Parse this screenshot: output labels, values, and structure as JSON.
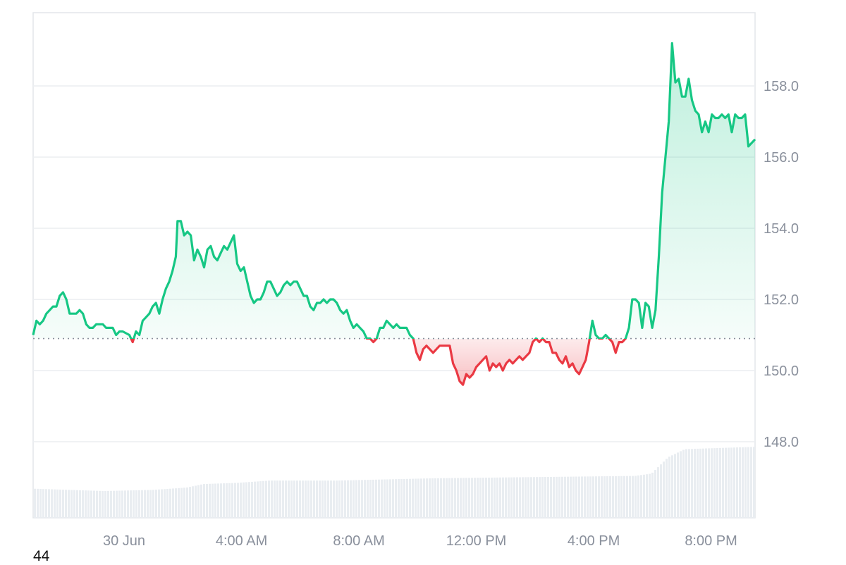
{
  "chart_data": {
    "type": "area",
    "baseline_value": 150.9,
    "ylim": [
      146,
      160
    ],
    "y_ticks": [
      "148.0",
      "150.0",
      "152.0",
      "154.0",
      "156.0",
      "158.0"
    ],
    "x_ticks": [
      "30 Jun",
      "4:00 AM",
      "8:00 AM",
      "12:00 PM",
      "4:00 PM",
      "8:00 PM"
    ],
    "x_tick_hours": [
      24,
      28,
      32,
      36,
      40,
      44
    ],
    "x_range_hours": [
      20.9,
      45.5
    ],
    "colors": {
      "up": "#16c784",
      "down": "#ea3943",
      "grid": "#eceef1",
      "volume": "#e9edf1",
      "baseline": "#8a909c"
    },
    "price": [
      [
        20.9,
        151.0
      ],
      [
        21.0,
        151.4
      ],
      [
        21.1,
        151.3
      ],
      [
        21.2,
        151.4
      ],
      [
        21.3,
        151.6
      ],
      [
        21.4,
        151.7
      ],
      [
        21.5,
        151.8
      ],
      [
        21.6,
        151.8
      ],
      [
        21.7,
        152.1
      ],
      [
        21.8,
        152.2
      ],
      [
        21.9,
        152.0
      ],
      [
        22.0,
        151.6
      ],
      [
        22.1,
        151.6
      ],
      [
        22.2,
        151.6
      ],
      [
        22.3,
        151.7
      ],
      [
        22.4,
        151.6
      ],
      [
        22.5,
        151.3
      ],
      [
        22.6,
        151.2
      ],
      [
        22.7,
        151.2
      ],
      [
        22.8,
        151.3
      ],
      [
        22.9,
        151.3
      ],
      [
        23.0,
        151.3
      ],
      [
        23.1,
        151.2
      ],
      [
        23.2,
        151.2
      ],
      [
        23.3,
        151.2
      ],
      [
        23.4,
        151.0
      ],
      [
        23.5,
        151.1
      ],
      [
        23.6,
        151.1
      ],
      [
        23.8,
        151.0
      ],
      [
        23.9,
        150.8
      ],
      [
        24.0,
        151.1
      ],
      [
        24.1,
        151.0
      ],
      [
        24.2,
        151.4
      ],
      [
        24.3,
        151.5
      ],
      [
        24.4,
        151.6
      ],
      [
        24.5,
        151.8
      ],
      [
        24.6,
        151.9
      ],
      [
        24.7,
        151.6
      ],
      [
        24.8,
        152.0
      ],
      [
        24.9,
        152.3
      ],
      [
        25.0,
        152.5
      ],
      [
        25.1,
        152.8
      ],
      [
        25.2,
        153.2
      ],
      [
        25.25,
        154.2
      ],
      [
        25.35,
        154.2
      ],
      [
        25.45,
        153.8
      ],
      [
        25.55,
        153.9
      ],
      [
        25.65,
        153.8
      ],
      [
        25.75,
        153.1
      ],
      [
        25.85,
        153.4
      ],
      [
        25.95,
        153.2
      ],
      [
        26.05,
        152.9
      ],
      [
        26.15,
        153.4
      ],
      [
        26.25,
        153.5
      ],
      [
        26.35,
        153.2
      ],
      [
        26.45,
        153.1
      ],
      [
        26.55,
        153.3
      ],
      [
        26.65,
        153.5
      ],
      [
        26.75,
        153.4
      ],
      [
        26.85,
        153.6
      ],
      [
        26.95,
        153.8
      ],
      [
        27.05,
        153.0
      ],
      [
        27.15,
        152.8
      ],
      [
        27.25,
        152.9
      ],
      [
        27.35,
        152.5
      ],
      [
        27.45,
        152.1
      ],
      [
        27.55,
        151.9
      ],
      [
        27.65,
        152.0
      ],
      [
        27.75,
        152.0
      ],
      [
        27.85,
        152.2
      ],
      [
        27.95,
        152.5
      ],
      [
        28.05,
        152.5
      ],
      [
        28.15,
        152.3
      ],
      [
        28.25,
        152.1
      ],
      [
        28.35,
        152.2
      ],
      [
        28.45,
        152.4
      ],
      [
        28.55,
        152.5
      ],
      [
        28.65,
        152.4
      ],
      [
        28.75,
        152.5
      ],
      [
        28.85,
        152.5
      ],
      [
        28.95,
        152.3
      ],
      [
        29.05,
        152.1
      ],
      [
        29.15,
        152.1
      ],
      [
        29.25,
        151.8
      ],
      [
        29.35,
        151.7
      ],
      [
        29.45,
        151.9
      ],
      [
        29.55,
        151.9
      ],
      [
        29.65,
        152.0
      ],
      [
        29.75,
        151.9
      ],
      [
        29.85,
        152.0
      ],
      [
        29.95,
        152.0
      ],
      [
        30.05,
        151.9
      ],
      [
        30.15,
        151.7
      ],
      [
        30.25,
        151.6
      ],
      [
        30.35,
        151.7
      ],
      [
        30.45,
        151.4
      ],
      [
        30.55,
        151.2
      ],
      [
        30.65,
        151.3
      ],
      [
        30.75,
        151.2
      ],
      [
        30.85,
        151.1
      ],
      [
        30.95,
        150.9
      ],
      [
        31.05,
        150.9
      ],
      [
        31.15,
        150.8
      ],
      [
        31.25,
        150.9
      ],
      [
        31.35,
        151.2
      ],
      [
        31.45,
        151.2
      ],
      [
        31.55,
        151.4
      ],
      [
        31.65,
        151.3
      ],
      [
        31.75,
        151.2
      ],
      [
        31.85,
        151.3
      ],
      [
        31.95,
        151.2
      ],
      [
        32.05,
        151.2
      ],
      [
        32.15,
        151.2
      ],
      [
        32.25,
        151.0
      ],
      [
        32.35,
        150.9
      ],
      [
        32.45,
        150.5
      ],
      [
        32.55,
        150.3
      ],
      [
        32.65,
        150.6
      ],
      [
        32.75,
        150.7
      ],
      [
        32.85,
        150.6
      ],
      [
        32.95,
        150.5
      ],
      [
        33.05,
        150.6
      ],
      [
        33.15,
        150.7
      ],
      [
        33.25,
        150.7
      ],
      [
        33.35,
        150.7
      ],
      [
        33.45,
        150.7
      ],
      [
        33.55,
        150.2
      ],
      [
        33.65,
        150.0
      ],
      [
        33.75,
        149.7
      ],
      [
        33.85,
        149.6
      ],
      [
        33.95,
        149.9
      ],
      [
        34.05,
        149.8
      ],
      [
        34.15,
        149.9
      ],
      [
        34.25,
        150.1
      ],
      [
        34.35,
        150.2
      ],
      [
        34.45,
        150.3
      ],
      [
        34.55,
        150.4
      ],
      [
        34.65,
        150.0
      ],
      [
        34.75,
        150.2
      ],
      [
        34.85,
        150.1
      ],
      [
        34.95,
        150.2
      ],
      [
        35.05,
        150.0
      ],
      [
        35.15,
        150.2
      ],
      [
        35.25,
        150.3
      ],
      [
        35.35,
        150.2
      ],
      [
        35.45,
        150.3
      ],
      [
        35.55,
        150.4
      ],
      [
        35.65,
        150.3
      ],
      [
        35.75,
        150.4
      ],
      [
        35.85,
        150.5
      ],
      [
        35.95,
        150.8
      ],
      [
        36.05,
        150.9
      ],
      [
        36.15,
        150.8
      ],
      [
        36.25,
        150.9
      ],
      [
        36.35,
        150.8
      ],
      [
        36.45,
        150.8
      ],
      [
        36.55,
        150.5
      ],
      [
        36.65,
        150.5
      ],
      [
        36.75,
        150.3
      ],
      [
        36.85,
        150.2
      ],
      [
        36.95,
        150.4
      ],
      [
        37.05,
        150.1
      ],
      [
        37.15,
        150.2
      ],
      [
        37.25,
        150.0
      ],
      [
        37.35,
        149.9
      ],
      [
        37.45,
        150.1
      ],
      [
        37.55,
        150.3
      ],
      [
        37.65,
        150.8
      ],
      [
        37.75,
        151.4
      ],
      [
        37.85,
        151.0
      ],
      [
        37.95,
        150.9
      ],
      [
        38.05,
        150.9
      ],
      [
        38.15,
        151.0
      ],
      [
        38.25,
        150.9
      ],
      [
        38.35,
        150.8
      ],
      [
        38.45,
        150.5
      ],
      [
        38.55,
        150.8
      ],
      [
        38.65,
        150.8
      ],
      [
        38.75,
        150.9
      ],
      [
        38.85,
        151.2
      ],
      [
        38.95,
        152.0
      ],
      [
        39.05,
        152.0
      ],
      [
        39.15,
        151.9
      ],
      [
        39.25,
        151.2
      ],
      [
        39.35,
        151.9
      ],
      [
        39.45,
        151.8
      ],
      [
        39.55,
        151.2
      ],
      [
        39.65,
        151.7
      ],
      [
        39.75,
        153.2
      ],
      [
        39.85,
        155.0
      ],
      [
        39.95,
        156.0
      ],
      [
        40.05,
        157.0
      ],
      [
        40.15,
        159.2
      ],
      [
        40.25,
        158.1
      ],
      [
        40.35,
        158.2
      ],
      [
        40.45,
        157.7
      ],
      [
        40.55,
        157.7
      ],
      [
        40.65,
        158.2
      ],
      [
        40.75,
        157.6
      ],
      [
        40.85,
        157.3
      ],
      [
        40.95,
        157.2
      ],
      [
        41.05,
        156.7
      ],
      [
        41.15,
        157.0
      ],
      [
        41.25,
        156.7
      ],
      [
        41.35,
        157.2
      ],
      [
        41.45,
        157.1
      ],
      [
        41.55,
        157.1
      ],
      [
        41.65,
        157.2
      ],
      [
        41.75,
        157.1
      ],
      [
        41.85,
        157.2
      ],
      [
        41.95,
        156.7
      ],
      [
        42.05,
        157.2
      ],
      [
        42.15,
        157.1
      ],
      [
        42.25,
        157.1
      ],
      [
        42.35,
        157.2
      ],
      [
        42.45,
        156.3
      ],
      [
        42.55,
        156.4
      ],
      [
        42.65,
        156.5
      ]
    ],
    "volume_levels": [
      [
        20.9,
        0.45
      ],
      [
        23.0,
        0.43
      ],
      [
        24.5,
        0.44
      ],
      [
        25.5,
        0.46
      ],
      [
        26.0,
        0.49
      ],
      [
        27.0,
        0.5
      ],
      [
        28.0,
        0.52
      ],
      [
        30.0,
        0.52
      ],
      [
        33.0,
        0.54
      ],
      [
        36.0,
        0.55
      ],
      [
        39.0,
        0.56
      ],
      [
        39.5,
        0.58
      ],
      [
        40.0,
        0.72
      ],
      [
        40.5,
        0.79
      ],
      [
        41.5,
        0.8
      ],
      [
        42.65,
        0.81
      ]
    ]
  },
  "footnote": "44"
}
